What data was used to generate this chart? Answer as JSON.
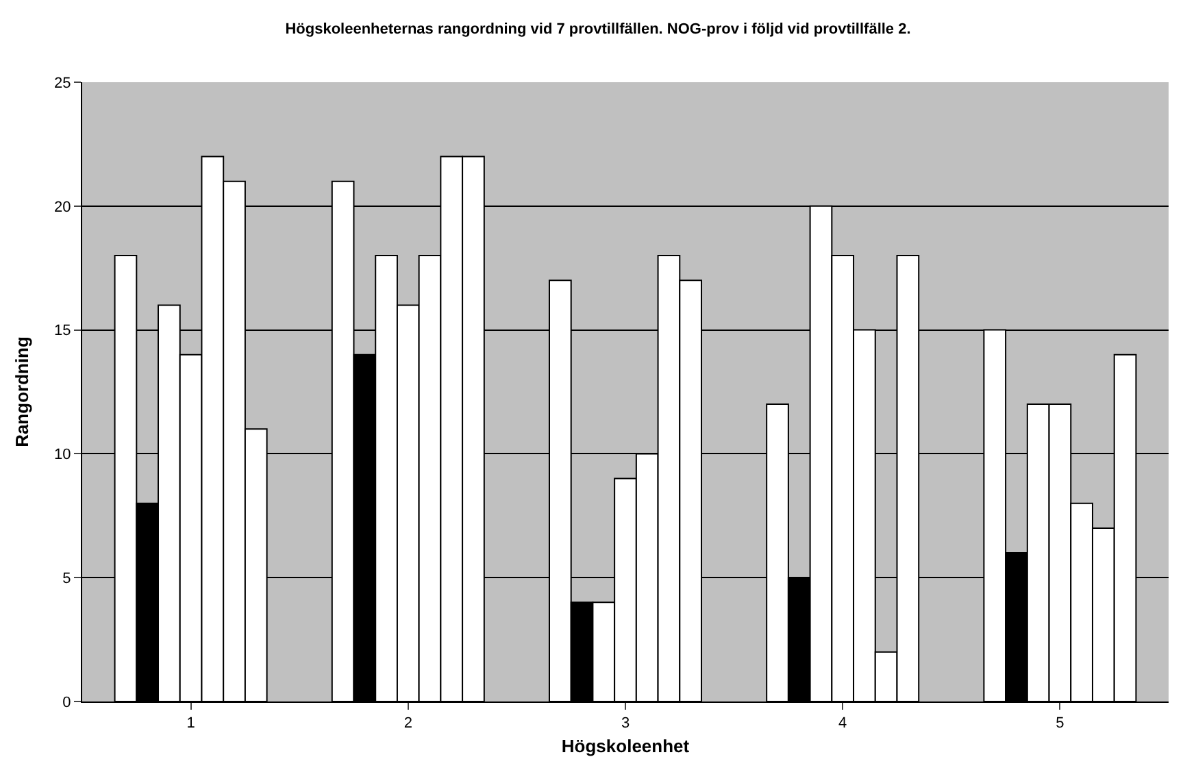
{
  "chart_data": {
    "type": "bar",
    "title": "Högskoleenheternas rangordning vid 7 provtillfällen. NOG-prov i följd vid provtillfälle 2.",
    "xlabel": "Högskoleenhet",
    "ylabel": "Rangordning",
    "categories": [
      "1",
      "2",
      "3",
      "4",
      "5"
    ],
    "series": [
      {
        "color": "#ffffff",
        "values": [
          18,
          21,
          17,
          12,
          15
        ]
      },
      {
        "color": "#000000",
        "values": [
          8,
          14,
          4,
          5,
          6
        ]
      },
      {
        "color": "#ffffff",
        "values": [
          16,
          18,
          4,
          20,
          12
        ]
      },
      {
        "color": "#ffffff",
        "values": [
          14,
          16,
          9,
          18,
          12
        ]
      },
      {
        "color": "#ffffff",
        "values": [
          22,
          18,
          10,
          15,
          8
        ]
      },
      {
        "color": "#ffffff",
        "values": [
          21,
          22,
          18,
          2,
          7
        ]
      },
      {
        "color": "#ffffff",
        "values": [
          11,
          22,
          17,
          18,
          14
        ]
      }
    ],
    "ylim": [
      0,
      25
    ],
    "yticks": [
      0,
      5,
      10,
      15,
      20,
      25
    ],
    "grid": "y"
  }
}
